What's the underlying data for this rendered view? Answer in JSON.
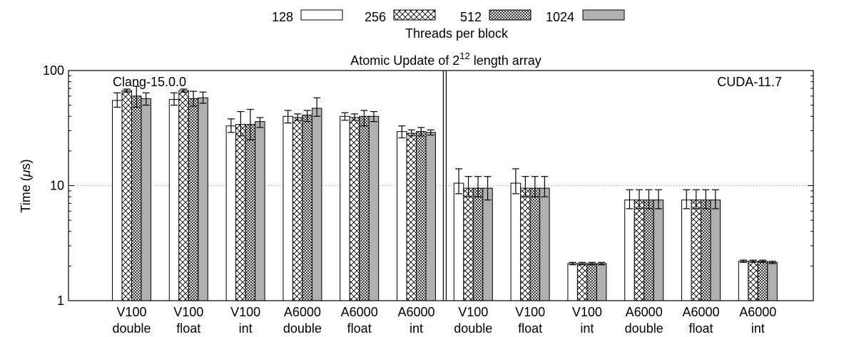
{
  "chart_data": {
    "type": "bar",
    "title_prefix": "Atomic Update of 2",
    "title_exponent": "12",
    "title_suffix": " length array",
    "ylabel_prefix": "Time (",
    "ylabel_mu": "μ",
    "ylabel_suffix": "s)",
    "yscale": "log",
    "ylim": [
      1,
      100
    ],
    "yticks": [
      {
        "value": 1,
        "label": "1"
      },
      {
        "value": 10,
        "label": "10"
      },
      {
        "value": 100,
        "label": "100"
      }
    ],
    "grid": "dotted horizontal at 10",
    "legend": {
      "title": "Threads per block",
      "placement": "top-center",
      "entries": [
        "128",
        "256",
        "512",
        "1024"
      ]
    },
    "panels": [
      {
        "label": "Clang-15.0.0",
        "label_placement": "top-left"
      },
      {
        "label": "CUDA-11.7",
        "label_placement": "top-right"
      }
    ],
    "categories": [
      [
        "V100",
        "double"
      ],
      [
        "V100",
        "float"
      ],
      [
        "V100",
        "int"
      ],
      [
        "A6000",
        "double"
      ],
      [
        "A6000",
        "float"
      ],
      [
        "A6000",
        "int"
      ],
      [
        "V100",
        "double"
      ],
      [
        "V100",
        "float"
      ],
      [
        "V100",
        "int"
      ],
      [
        "A6000",
        "double"
      ],
      [
        "A6000",
        "float"
      ],
      [
        "A6000",
        "int"
      ]
    ],
    "series": [
      {
        "name": "128",
        "pattern": "white",
        "values": [
          55,
          56,
          33,
          40,
          40,
          29.5,
          10.5,
          10.5,
          2.1,
          7.5,
          7.5,
          2.2
        ],
        "err_low": [
          48,
          50,
          29,
          35,
          37,
          26,
          8.5,
          8.5,
          2.05,
          6.3,
          6.3,
          2.15
        ],
        "err_high": [
          64,
          64,
          38,
          45,
          43,
          33,
          14,
          14,
          2.15,
          9.2,
          9.2,
          2.25
        ]
      },
      {
        "name": "256",
        "pattern": "crosshatch",
        "values": [
          67,
          67,
          34,
          39,
          39,
          28.5,
          9.5,
          9.5,
          2.1,
          7.5,
          7.5,
          2.2
        ],
        "err_low": [
          65,
          65,
          27,
          37,
          37,
          27,
          8,
          8,
          2.05,
          6.3,
          6.3,
          2.15
        ],
        "err_high": [
          69,
          69,
          44,
          42,
          42,
          30.5,
          12,
          12,
          2.15,
          9.2,
          9.2,
          2.25
        ]
      },
      {
        "name": "512",
        "pattern": "fine-hatch",
        "values": [
          60,
          57,
          34,
          41,
          40,
          29.5,
          9.5,
          9.5,
          2.1,
          7.5,
          7.5,
          2.2
        ],
        "err_low": [
          48,
          49,
          25,
          36,
          33,
          27,
          8,
          8,
          2.05,
          6.3,
          6.3,
          2.15
        ],
        "err_high": [
          73,
          66,
          46,
          45,
          45,
          32,
          12,
          12,
          2.15,
          9.2,
          9.2,
          2.25
        ]
      },
      {
        "name": "1024",
        "pattern": "gray",
        "values": [
          57,
          58,
          36,
          47,
          40,
          29,
          9.5,
          9.5,
          2.1,
          7.5,
          7.5,
          2.15
        ],
        "err_low": [
          50,
          52,
          32,
          40,
          36,
          27.5,
          7.5,
          8,
          2.05,
          6.3,
          6.3,
          2.1
        ],
        "err_high": [
          64,
          65,
          39,
          58,
          44,
          30.5,
          12,
          12,
          2.15,
          9.2,
          9.2,
          2.2
        ]
      }
    ]
  }
}
